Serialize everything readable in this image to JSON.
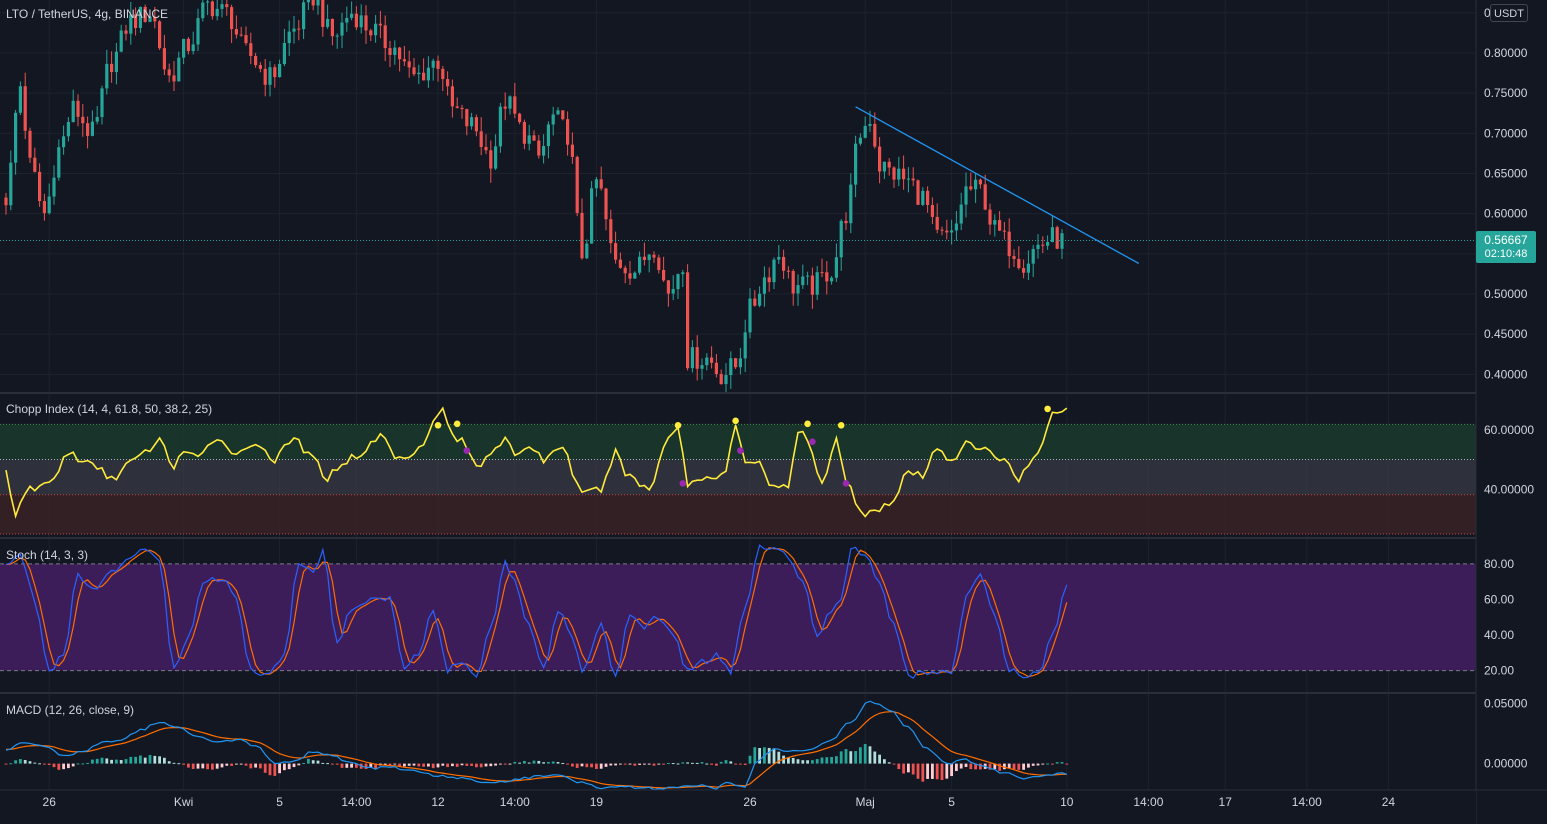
{
  "header": {
    "symbol_title": "LTO / TetherUS, 4g, BINANCE",
    "currency_button": "USDT"
  },
  "price_pane": {
    "y_ticks": [
      "0.85000",
      "0.80000",
      "0.75000",
      "0.70000",
      "0.65000",
      "0.60000",
      "0.55000",
      "0.50000",
      "0.45000",
      "0.40000"
    ],
    "y_range": [
      0.378,
      0.866
    ],
    "last_price": "0.56667",
    "countdown": "02:10:48",
    "up_color": "#26a69a",
    "down_color": "#ef5350",
    "trendline_color": "#2196f3"
  },
  "chop_pane": {
    "title": "Chopp Index (14, 4, 61.8, 50, 38.2, 25)",
    "y_ticks": [
      "60.00000",
      "40.00000"
    ],
    "y_range": [
      24,
      72
    ],
    "bands": [
      61.8,
      50,
      38.2,
      25
    ],
    "line_color": "#ffeb3b",
    "dot_color_high": "#ffeb3b",
    "dot_color_low": "#9c27b0"
  },
  "stoch_pane": {
    "title": "Stoch (14, 3, 3)",
    "y_ticks": [
      "80.00",
      "60.00",
      "40.00",
      "20.00"
    ],
    "y_range": [
      8,
      94
    ],
    "band_upper": 80,
    "band_lower": 20,
    "k_color": "#2962ff",
    "d_color": "#ff6d00",
    "band_fill": "#3c1d5a"
  },
  "macd_pane": {
    "title": "MACD (12, 26, close, 9)",
    "y_ticks": [
      "0.05000",
      "0.00000"
    ],
    "y_range": [
      -0.022,
      0.058
    ],
    "macd_color": "#2196f3",
    "signal_color": "#ff6d00"
  },
  "time_axis": {
    "labels": [
      {
        "text": "26",
        "bar": 9
      },
      {
        "text": "Kwi",
        "bar": 37
      },
      {
        "text": "5",
        "bar": 57
      },
      {
        "text": "14:00",
        "bar": 73
      },
      {
        "text": "12",
        "bar": 90
      },
      {
        "text": "14:00",
        "bar": 106
      },
      {
        "text": "19",
        "bar": 123
      },
      {
        "text": "26",
        "bar": 155
      },
      {
        "text": "Maj",
        "bar": 179
      },
      {
        "text": "5",
        "bar": 197
      },
      {
        "text": "10",
        "bar": 221
      },
      {
        "text": "14:00",
        "bar": 238
      },
      {
        "text": "17",
        "bar": 254
      },
      {
        "text": "14:00",
        "bar": 271
      },
      {
        "text": "24",
        "bar": 288
      }
    ]
  },
  "chart_data": {
    "type": "candlestick",
    "bar_count": 221,
    "price_anchors": [
      [
        0,
        0.62
      ],
      [
        3,
        0.76
      ],
      [
        5,
        0.66
      ],
      [
        8,
        0.6
      ],
      [
        11,
        0.68
      ],
      [
        14,
        0.73
      ],
      [
        18,
        0.7
      ],
      [
        22,
        0.79
      ],
      [
        26,
        0.84
      ],
      [
        30,
        0.85
      ],
      [
        34,
        0.77
      ],
      [
        38,
        0.81
      ],
      [
        42,
        0.86
      ],
      [
        46,
        0.85
      ],
      [
        50,
        0.8
      ],
      [
        55,
        0.77
      ],
      [
        60,
        0.83
      ],
      [
        64,
        0.87
      ],
      [
        68,
        0.82
      ],
      [
        72,
        0.85
      ],
      [
        76,
        0.83
      ],
      [
        80,
        0.81
      ],
      [
        85,
        0.77
      ],
      [
        90,
        0.79
      ],
      [
        93,
        0.73
      ],
      [
        97,
        0.71
      ],
      [
        101,
        0.67
      ],
      [
        104,
        0.74
      ],
      [
        108,
        0.7
      ],
      [
        111,
        0.67
      ],
      [
        114,
        0.72
      ],
      [
        117,
        0.7
      ],
      [
        120,
        0.55
      ],
      [
        123,
        0.64
      ],
      [
        127,
        0.54
      ],
      [
        131,
        0.53
      ],
      [
        135,
        0.56
      ],
      [
        138,
        0.5
      ],
      [
        141,
        0.54
      ],
      [
        142,
        0.42
      ],
      [
        146,
        0.42
      ],
      [
        149,
        0.4
      ],
      [
        152,
        0.41
      ],
      [
        155,
        0.48
      ],
      [
        158,
        0.52
      ],
      [
        161,
        0.55
      ],
      [
        164,
        0.51
      ],
      [
        168,
        0.51
      ],
      [
        172,
        0.53
      ],
      [
        175,
        0.6
      ],
      [
        178,
        0.7
      ],
      [
        180,
        0.72
      ],
      [
        182,
        0.66
      ],
      [
        185,
        0.65
      ],
      [
        188,
        0.64
      ],
      [
        191,
        0.62
      ],
      [
        194,
        0.57
      ],
      [
        197,
        0.57
      ],
      [
        200,
        0.63
      ],
      [
        203,
        0.63
      ],
      [
        206,
        0.58
      ],
      [
        209,
        0.56
      ],
      [
        212,
        0.54
      ],
      [
        215,
        0.56
      ],
      [
        218,
        0.57
      ],
      [
        220,
        0.566
      ]
    ],
    "chop_anchors": [
      [
        0,
        46
      ],
      [
        2,
        32
      ],
      [
        5,
        40
      ],
      [
        9,
        42
      ],
      [
        13,
        52
      ],
      [
        18,
        48
      ],
      [
        22,
        44
      ],
      [
        27,
        50
      ],
      [
        32,
        56
      ],
      [
        35,
        48
      ],
      [
        37,
        53
      ],
      [
        40,
        50
      ],
      [
        44,
        58
      ],
      [
        46,
        54
      ],
      [
        49,
        52
      ],
      [
        52,
        56
      ],
      [
        56,
        50
      ],
      [
        60,
        57
      ],
      [
        64,
        50
      ],
      [
        67,
        44
      ],
      [
        70,
        49
      ],
      [
        74,
        52
      ],
      [
        78,
        58
      ],
      [
        82,
        50
      ],
      [
        86,
        54
      ],
      [
        89,
        62
      ],
      [
        91,
        67
      ],
      [
        93,
        58
      ],
      [
        95,
        56
      ],
      [
        98,
        48
      ],
      [
        102,
        54
      ],
      [
        104,
        58
      ],
      [
        106,
        50
      ],
      [
        109,
        55
      ],
      [
        112,
        50
      ],
      [
        116,
        55
      ],
      [
        118,
        46
      ],
      [
        120,
        38
      ],
      [
        124,
        40
      ],
      [
        127,
        52
      ],
      [
        130,
        44
      ],
      [
        134,
        40
      ],
      [
        138,
        58
      ],
      [
        140,
        61
      ],
      [
        142,
        42
      ],
      [
        146,
        44
      ],
      [
        150,
        46
      ],
      [
        152,
        62
      ],
      [
        154,
        48
      ],
      [
        157,
        50
      ],
      [
        159,
        42
      ],
      [
        163,
        40
      ],
      [
        165,
        60
      ],
      [
        167,
        56
      ],
      [
        170,
        41
      ],
      [
        173,
        58
      ],
      [
        175,
        43
      ],
      [
        178,
        32
      ],
      [
        182,
        34
      ],
      [
        185,
        36
      ],
      [
        188,
        46
      ],
      [
        191,
        44
      ],
      [
        194,
        54
      ],
      [
        197,
        50
      ],
      [
        200,
        55
      ],
      [
        204,
        53
      ],
      [
        208,
        50
      ],
      [
        211,
        44
      ],
      [
        214,
        50
      ],
      [
        216,
        55
      ],
      [
        218,
        66
      ],
      [
        221,
        68
      ]
    ],
    "chop_dots": [
      {
        "bar": 90,
        "value": 61.5,
        "kind": "high"
      },
      {
        "bar": 94,
        "value": 62.0,
        "kind": "high"
      },
      {
        "bar": 96,
        "value": 53.0,
        "kind": "low"
      },
      {
        "bar": 140,
        "value": 61.5,
        "kind": "high"
      },
      {
        "bar": 141,
        "value": 42.0,
        "kind": "low"
      },
      {
        "bar": 152,
        "value": 63.0,
        "kind": "high"
      },
      {
        "bar": 153,
        "value": 53.0,
        "kind": "low"
      },
      {
        "bar": 167,
        "value": 62.0,
        "kind": "high"
      },
      {
        "bar": 168,
        "value": 56.0,
        "kind": "low"
      },
      {
        "bar": 174,
        "value": 61.5,
        "kind": "high"
      },
      {
        "bar": 175,
        "value": 42.0,
        "kind": "low"
      },
      {
        "bar": 217,
        "value": 67.0,
        "kind": "high"
      }
    ],
    "stoch_anchors": [
      [
        0,
        80
      ],
      [
        3,
        85
      ],
      [
        6,
        60
      ],
      [
        9,
        20
      ],
      [
        12,
        30
      ],
      [
        15,
        75
      ],
      [
        18,
        65
      ],
      [
        22,
        75
      ],
      [
        26,
        85
      ],
      [
        29,
        90
      ],
      [
        32,
        80
      ],
      [
        35,
        20
      ],
      [
        38,
        40
      ],
      [
        41,
        70
      ],
      [
        45,
        72
      ],
      [
        48,
        60
      ],
      [
        51,
        20
      ],
      [
        55,
        18
      ],
      [
        58,
        30
      ],
      [
        61,
        80
      ],
      [
        64,
        75
      ],
      [
        66,
        88
      ],
      [
        69,
        35
      ],
      [
        72,
        55
      ],
      [
        76,
        60
      ],
      [
        80,
        60
      ],
      [
        83,
        20
      ],
      [
        86,
        30
      ],
      [
        89,
        55
      ],
      [
        92,
        20
      ],
      [
        95,
        25
      ],
      [
        98,
        18
      ],
      [
        101,
        45
      ],
      [
        104,
        80
      ],
      [
        106,
        70
      ],
      [
        109,
        45
      ],
      [
        112,
        20
      ],
      [
        115,
        55
      ],
      [
        118,
        40
      ],
      [
        120,
        20
      ],
      [
        124,
        45
      ],
      [
        127,
        17
      ],
      [
        130,
        50
      ],
      [
        133,
        45
      ],
      [
        136,
        50
      ],
      [
        139,
        40
      ],
      [
        142,
        20
      ],
      [
        145,
        25
      ],
      [
        148,
        28
      ],
      [
        151,
        20
      ],
      [
        154,
        55
      ],
      [
        157,
        90
      ],
      [
        160,
        88
      ],
      [
        163,
        85
      ],
      [
        166,
        70
      ],
      [
        169,
        40
      ],
      [
        172,
        55
      ],
      [
        174,
        60
      ],
      [
        176,
        90
      ],
      [
        179,
        85
      ],
      [
        182,
        70
      ],
      [
        185,
        45
      ],
      [
        188,
        17
      ],
      [
        191,
        18
      ],
      [
        194,
        20
      ],
      [
        197,
        20
      ],
      [
        200,
        60
      ],
      [
        203,
        75
      ],
      [
        206,
        50
      ],
      [
        209,
        20
      ],
      [
        212,
        17
      ],
      [
        215,
        18
      ],
      [
        218,
        40
      ],
      [
        221,
        70
      ]
    ],
    "macd_anchors": [
      [
        0,
        0.012
      ],
      [
        4,
        0.018
      ],
      [
        8,
        0.014
      ],
      [
        12,
        0.006
      ],
      [
        16,
        0.01
      ],
      [
        20,
        0.018
      ],
      [
        24,
        0.02
      ],
      [
        28,
        0.028
      ],
      [
        32,
        0.035
      ],
      [
        36,
        0.03
      ],
      [
        40,
        0.022
      ],
      [
        44,
        0.018
      ],
      [
        48,
        0.02
      ],
      [
        52,
        0.015
      ],
      [
        56,
        0.0
      ],
      [
        60,
        0.002
      ],
      [
        64,
        0.01
      ],
      [
        68,
        0.007
      ],
      [
        72,
        0.0
      ],
      [
        76,
        -0.004
      ],
      [
        80,
        -0.003
      ],
      [
        85,
        -0.006
      ],
      [
        90,
        -0.01
      ],
      [
        95,
        -0.012
      ],
      [
        100,
        -0.016
      ],
      [
        104,
        -0.015
      ],
      [
        108,
        -0.012
      ],
      [
        112,
        -0.01
      ],
      [
        116,
        -0.01
      ],
      [
        120,
        -0.016
      ],
      [
        124,
        -0.02
      ],
      [
        128,
        -0.019
      ],
      [
        132,
        -0.02
      ],
      [
        136,
        -0.021
      ],
      [
        140,
        -0.02
      ],
      [
        144,
        -0.018
      ],
      [
        148,
        -0.021
      ],
      [
        150,
        -0.015
      ],
      [
        154,
        -0.02
      ],
      [
        156,
        0.0
      ],
      [
        160,
        0.012
      ],
      [
        164,
        0.01
      ],
      [
        168,
        0.012
      ],
      [
        172,
        0.02
      ],
      [
        176,
        0.035
      ],
      [
        180,
        0.052
      ],
      [
        184,
        0.045
      ],
      [
        188,
        0.03
      ],
      [
        192,
        0.012
      ],
      [
        196,
        0.0
      ],
      [
        200,
        0.003
      ],
      [
        204,
        -0.003
      ],
      [
        208,
        -0.008
      ],
      [
        212,
        -0.012
      ],
      [
        216,
        -0.01
      ],
      [
        220,
        -0.008
      ]
    ],
    "trendline": {
      "start": [
        177,
        0.733
      ],
      "end": [
        236,
        0.538
      ]
    }
  }
}
